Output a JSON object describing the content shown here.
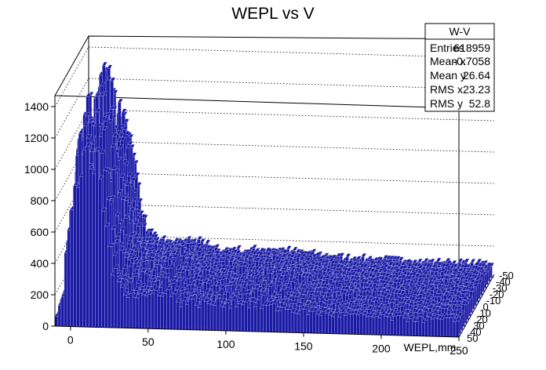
{
  "chart_data": {
    "type": "lego3d",
    "title": "WEPL vs V",
    "xlabel": "WEPL,mm",
    "ylabel": "",
    "xlim": [
      -10,
      250
    ],
    "ylim": [
      -50,
      50
    ],
    "zlim": [
      0,
      1450
    ],
    "x_ticks": [
      "0",
      "50",
      "100",
      "150",
      "200",
      "250"
    ],
    "z_ticks": [
      "0",
      "200",
      "400",
      "600",
      "800",
      "1000",
      "1200",
      "1400"
    ],
    "v_ticks": [
      "-50",
      "-40",
      "-30",
      "-20",
      "-10",
      "0",
      "10",
      "20",
      "30",
      "40",
      "50"
    ],
    "bar_color": "#1a1aa6",
    "bar_stroke": "#ffffff",
    "profile": [
      {
        "wepl": -10,
        "peak": 40
      },
      {
        "wepl": -5,
        "peak": 250
      },
      {
        "wepl": 0,
        "peak": 1050
      },
      {
        "wepl": 5,
        "peak": 1330
      },
      {
        "wepl": 10,
        "peak": 1300
      },
      {
        "wepl": 15,
        "peak": 1450
      },
      {
        "wepl": 20,
        "peak": 1200
      },
      {
        "wepl": 25,
        "peak": 650
      },
      {
        "wepl": 30,
        "peak": 380
      },
      {
        "wepl": 40,
        "peak": 300
      },
      {
        "wepl": 50,
        "peak": 280
      },
      {
        "wepl": 60,
        "peak": 350
      },
      {
        "wepl": 70,
        "peak": 240
      },
      {
        "wepl": 90,
        "peak": 230
      },
      {
        "wepl": 110,
        "peak": 250
      },
      {
        "wepl": 150,
        "peak": 180
      },
      {
        "wepl": 200,
        "peak": 150
      },
      {
        "wepl": 250,
        "peak": 140
      }
    ]
  },
  "stats": {
    "header": "W-V",
    "rows": [
      {
        "label": "Entries",
        "value": "618959"
      },
      {
        "label": "Mean x",
        "value": "-0.7058"
      },
      {
        "label": "Mean y",
        "value": "26.64"
      },
      {
        "label": "RMS x",
        "value": "23.23"
      },
      {
        "label": "RMS y",
        "value": "52.8"
      }
    ]
  }
}
